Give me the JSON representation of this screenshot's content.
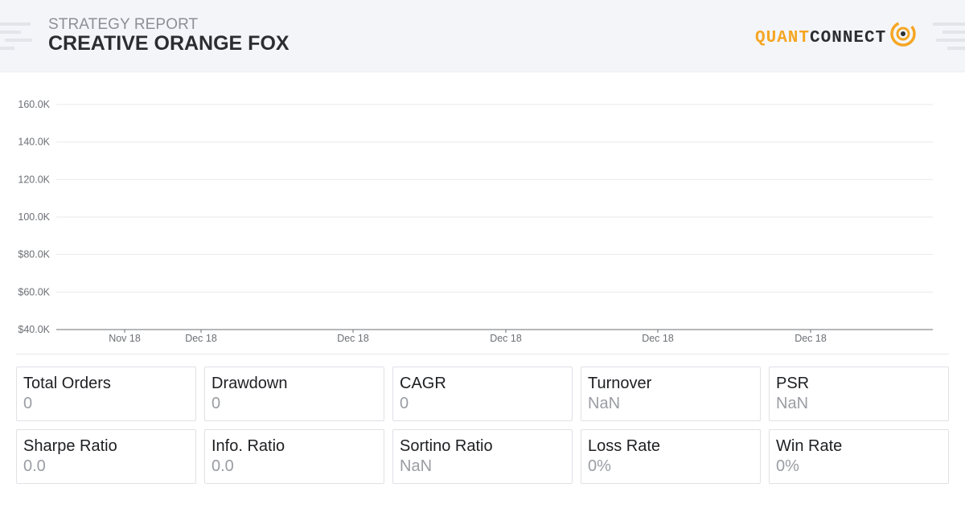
{
  "header": {
    "subtitle": "STRATEGY REPORT",
    "title": "CREATIVE ORANGE FOX",
    "logo_quant": "QUANT",
    "logo_connect": "CONNECT"
  },
  "colors": {
    "accent": "#f5a623",
    "header_bg": "#f4f5f8",
    "text_dark": "#2b2d31",
    "text_muted": "#9a9da3",
    "gridline": "#e8e9ec"
  },
  "chart_data": {
    "type": "line",
    "title": "",
    "xlabel": "",
    "ylabel": "",
    "y_tick_labels": [
      "$40.0K",
      "$60.0K",
      "$80.0K",
      "100.0K",
      "120.0K",
      "140.0K",
      "160.0K"
    ],
    "ylim": [
      40000,
      160000
    ],
    "x_tick_labels": [
      "Nov 18",
      "Dec 18",
      "Dec 18",
      "Dec 18",
      "Dec 18",
      "Dec 18"
    ],
    "series": [],
    "grid": true,
    "legend": "none"
  },
  "stats": [
    {
      "label": "Total Orders",
      "value": "0"
    },
    {
      "label": "Drawdown",
      "value": "0"
    },
    {
      "label": "CAGR",
      "value": "0"
    },
    {
      "label": "Turnover",
      "value": "NaN"
    },
    {
      "label": "PSR",
      "value": "NaN"
    },
    {
      "label": "Sharpe Ratio",
      "value": "0.0"
    },
    {
      "label": "Info. Ratio",
      "value": "0.0"
    },
    {
      "label": "Sortino Ratio",
      "value": "NaN"
    },
    {
      "label": "Loss Rate",
      "value": "0%"
    },
    {
      "label": "Win Rate",
      "value": "0%"
    }
  ]
}
